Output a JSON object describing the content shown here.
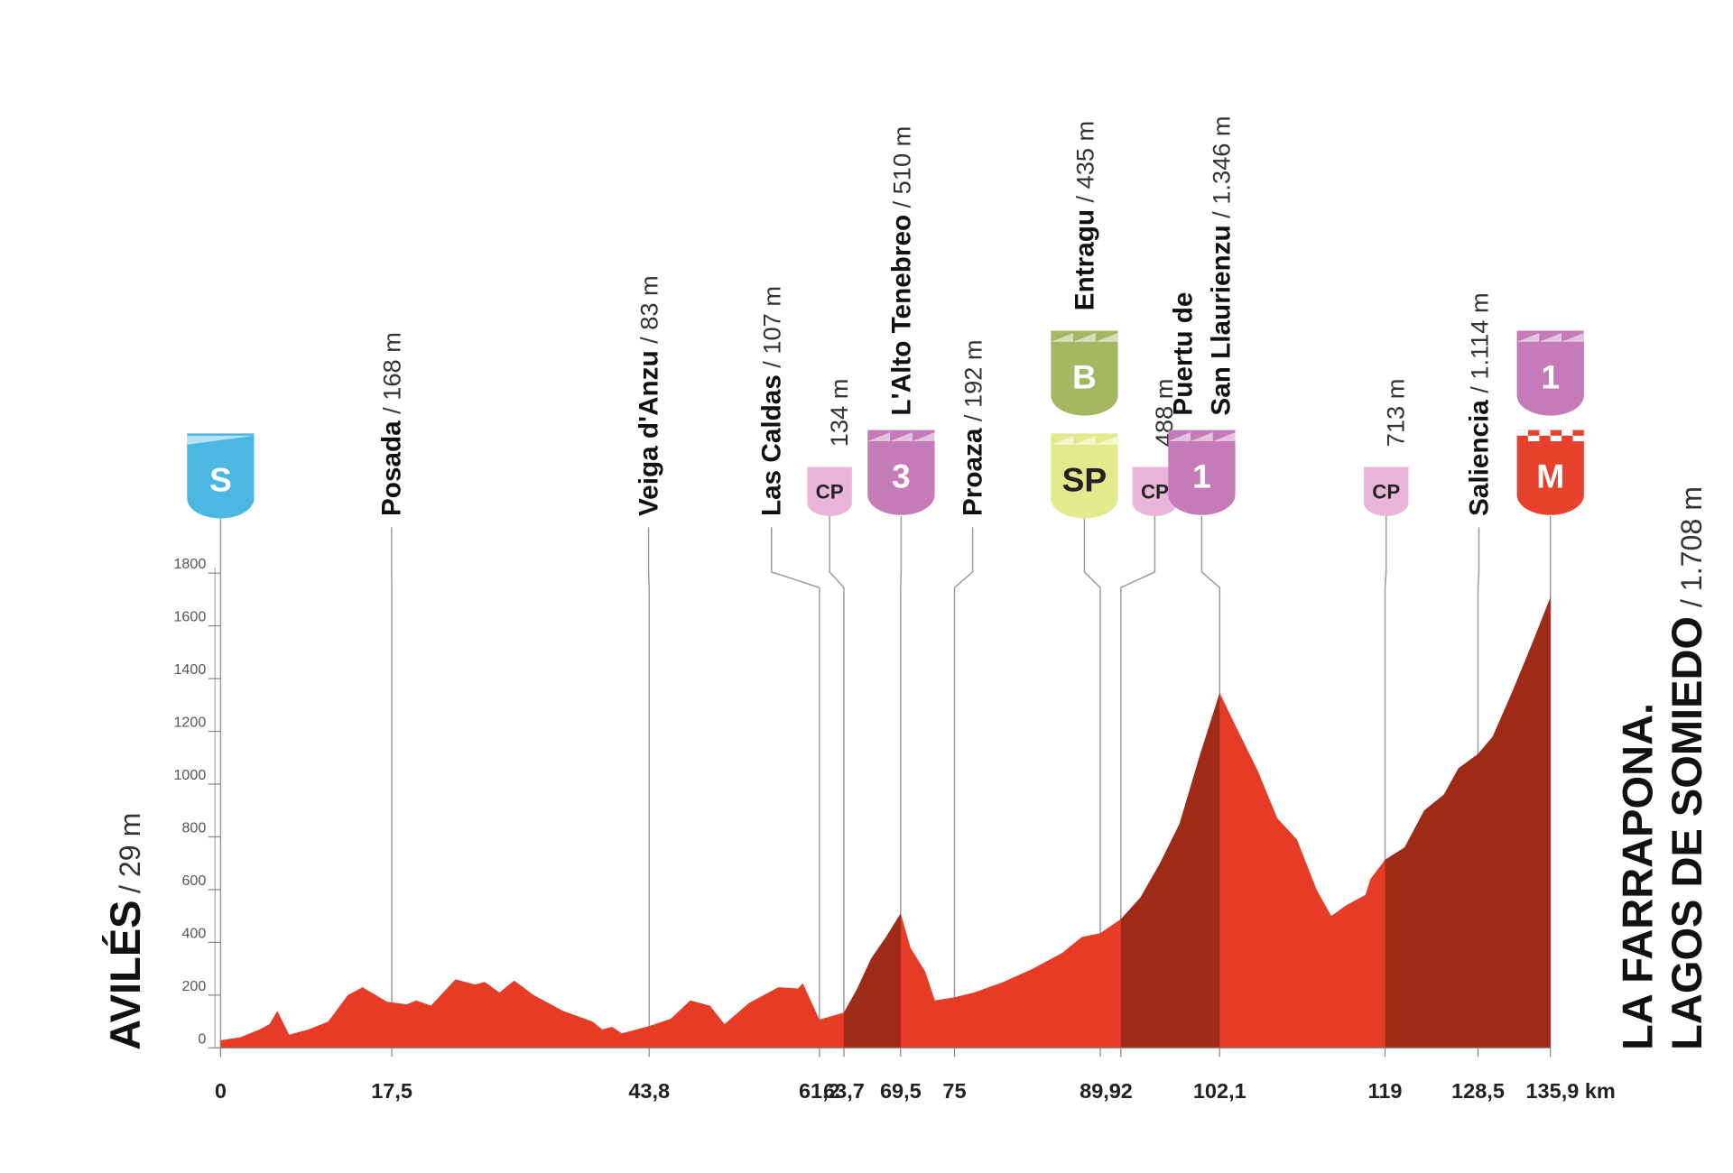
{
  "chart_data": {
    "type": "area",
    "color": "#e63b25",
    "shaded_color": "#9e2a18",
    "shaded_ranges": [
      [
        63.7,
        69.5
      ],
      [
        92,
        102.1
      ],
      [
        119,
        135.9
      ]
    ],
    "x": [
      0,
      2,
      4,
      5,
      5.8,
      7,
      9,
      11,
      13,
      14.5,
      17,
      19,
      20,
      21.5,
      24,
      26,
      27,
      28.5,
      30,
      32,
      35,
      38,
      39,
      40,
      41,
      43.8,
      46,
      48,
      50,
      51.5,
      54,
      57,
      59,
      59.5,
      61.2,
      63.7,
      65,
      66.5,
      68,
      69.5,
      70.5,
      72,
      73,
      75,
      77,
      80,
      83,
      86,
      88,
      89.9,
      92,
      94,
      96,
      98,
      100,
      102.1,
      104,
      106,
      108,
      110,
      112,
      113.5,
      115,
      117,
      117.5,
      119,
      121,
      123,
      125,
      126.5,
      128.5,
      130,
      132,
      134,
      135.9
    ],
    "values": [
      29,
      40,
      70,
      90,
      140,
      50,
      70,
      100,
      200,
      230,
      175,
      165,
      180,
      160,
      260,
      240,
      250,
      210,
      255,
      200,
      140,
      100,
      70,
      80,
      55,
      83,
      110,
      180,
      160,
      90,
      170,
      230,
      225,
      245,
      107,
      134,
      220,
      340,
      420,
      510,
      380,
      290,
      180,
      192,
      210,
      250,
      300,
      360,
      420,
      435,
      488,
      570,
      700,
      850,
      1100,
      1346,
      1200,
      1050,
      870,
      790,
      600,
      500,
      540,
      580,
      640,
      713,
      760,
      900,
      960,
      1060,
      1114,
      1180,
      1350,
      1530,
      1708
    ],
    "xlim": [
      0,
      135.9
    ],
    "ylim": [
      0,
      1800
    ],
    "yticks": [
      0,
      200,
      400,
      600,
      800,
      1000,
      1200,
      1400,
      1600,
      1800
    ],
    "xticks": [
      0,
      {
        "value": 17.5,
        "label": "17,5"
      },
      {
        "value": 43.8,
        "label": "43,8"
      },
      {
        "value": 61.2,
        "label": "61,2"
      },
      {
        "value": 63.7,
        "label": "63,7"
      },
      {
        "value": 69.5,
        "label": "69,5"
      },
      75,
      {
        "value": 89.9,
        "label": "89,9"
      },
      92,
      {
        "value": 102.1,
        "label": "102,1"
      },
      119,
      {
        "value": 128.5,
        "label": "128,5"
      },
      {
        "value": 135.9,
        "label": "135,9 km"
      }
    ],
    "start": {
      "name": "AVILÉS",
      "alt": "/ 29 m",
      "badge": "S"
    },
    "finish": {
      "name_lines": [
        "LA FARRAPONA.",
        "LAGOS DE SOMIEDO"
      ],
      "alt": "/ 1.708 m",
      "badges": [
        "1",
        "M"
      ]
    },
    "points": [
      {
        "name_lines": [
          "Posada"
        ],
        "alt": "/ 168 m",
        "km": 17.5
      },
      {
        "name_lines": [
          "Veiga d'Anzu"
        ],
        "alt": "/ 83 m",
        "km": 43.8
      },
      {
        "name_lines": [
          "Las Caldas"
        ],
        "alt": "/ 107 m",
        "km": 61.2
      },
      {
        "name_lines": [],
        "alt": "134 m",
        "km": 63.7,
        "badges": [
          "CP"
        ]
      },
      {
        "name_lines": [
          "L'Alto Tenebreo"
        ],
        "alt": "/ 510 m",
        "km": 69.5,
        "badges": [
          "3"
        ]
      },
      {
        "name_lines": [
          "Proaza"
        ],
        "alt": "/ 192 m",
        "km": 75
      },
      {
        "name_lines": [
          "Entragu"
        ],
        "alt": "/ 435 m",
        "km": 89.9,
        "badges": [
          "SP",
          "B"
        ]
      },
      {
        "name_lines": [],
        "alt": "488 m",
        "km": 92,
        "badges": [
          "CP"
        ]
      },
      {
        "name_lines": [
          "Puertu de",
          "San Llaurienzu"
        ],
        "alt": "/ 1.346 m",
        "km": 102.1,
        "badges": [
          "1"
        ]
      },
      {
        "name_lines": [],
        "alt": "713 m",
        "km": 119,
        "badges": [
          "CP"
        ]
      },
      {
        "name_lines": [
          "Saliencia"
        ],
        "alt": "/ 1.114 m",
        "km": 128.5
      }
    ]
  }
}
